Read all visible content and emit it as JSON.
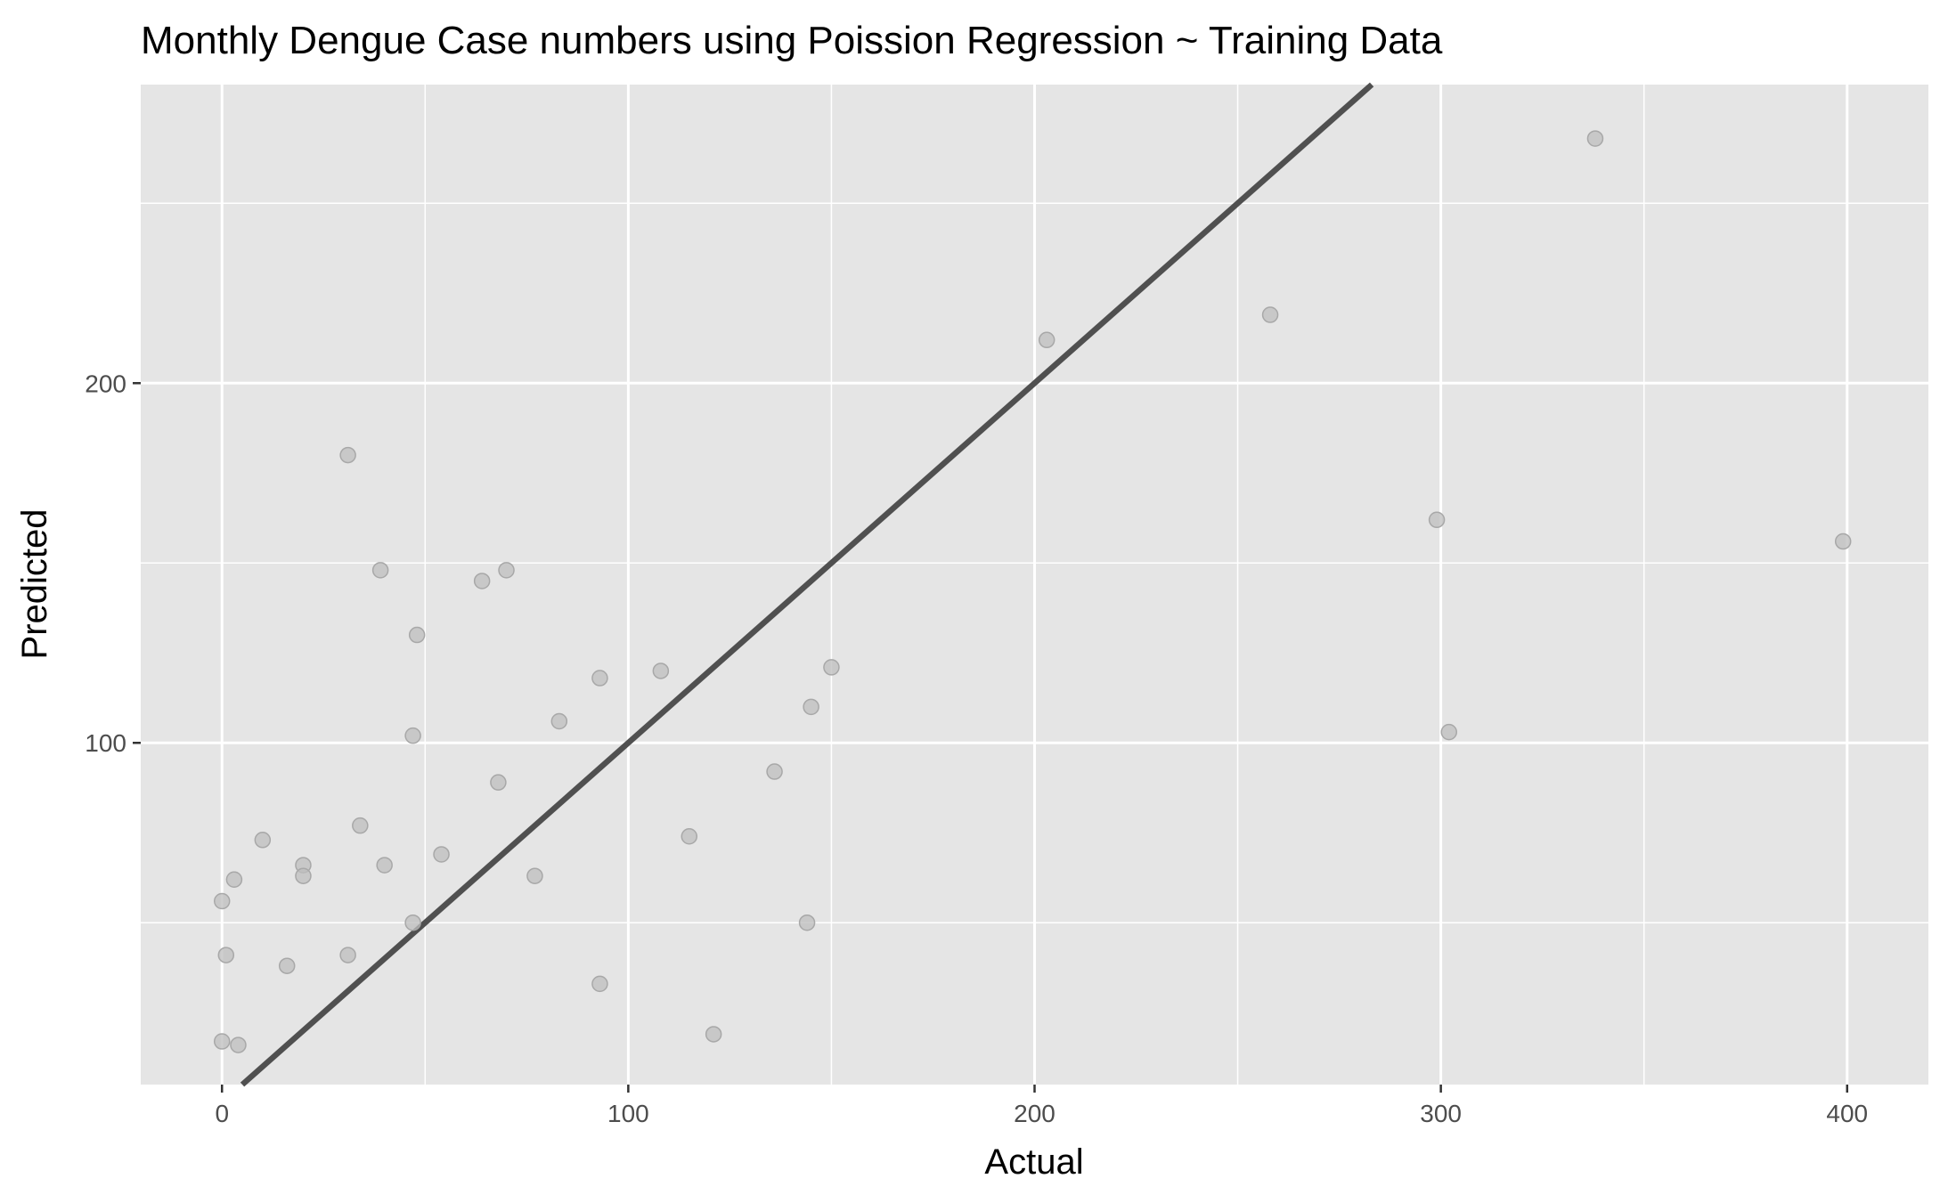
{
  "chart_data": {
    "type": "scatter",
    "title": "Monthly Dengue Case numbers using Poission Regression ~ Training Data",
    "xlabel": "Actual",
    "ylabel": "Predicted",
    "xlim": [
      -20,
      420
    ],
    "ylim": [
      5,
      283
    ],
    "x_ticks": [
      0,
      100,
      200,
      300,
      400
    ],
    "y_ticks": [
      100,
      200
    ],
    "x_minor_grid": [
      50,
      150,
      250,
      350
    ],
    "y_minor_grid": [
      50,
      150,
      250
    ],
    "grid": true,
    "legend": "none",
    "reference_line": {
      "slope": 1,
      "intercept": 0
    },
    "points": [
      {
        "x": 0,
        "y": 17
      },
      {
        "x": 4,
        "y": 16
      },
      {
        "x": 0,
        "y": 56
      },
      {
        "x": 1,
        "y": 41
      },
      {
        "x": 3,
        "y": 62
      },
      {
        "x": 10,
        "y": 73
      },
      {
        "x": 16,
        "y": 38
      },
      {
        "x": 20,
        "y": 66
      },
      {
        "x": 20,
        "y": 63
      },
      {
        "x": 31,
        "y": 180
      },
      {
        "x": 31,
        "y": 41
      },
      {
        "x": 34,
        "y": 77
      },
      {
        "x": 39,
        "y": 148
      },
      {
        "x": 40,
        "y": 66
      },
      {
        "x": 47,
        "y": 102
      },
      {
        "x": 47,
        "y": 50
      },
      {
        "x": 48,
        "y": 130
      },
      {
        "x": 54,
        "y": 69
      },
      {
        "x": 64,
        "y": 145
      },
      {
        "x": 68,
        "y": 89
      },
      {
        "x": 70,
        "y": 148
      },
      {
        "x": 77,
        "y": 63
      },
      {
        "x": 83,
        "y": 106
      },
      {
        "x": 93,
        "y": 118
      },
      {
        "x": 93,
        "y": 33
      },
      {
        "x": 108,
        "y": 120
      },
      {
        "x": 115,
        "y": 74
      },
      {
        "x": 121,
        "y": 19
      },
      {
        "x": 136,
        "y": 92
      },
      {
        "x": 144,
        "y": 50
      },
      {
        "x": 145,
        "y": 110
      },
      {
        "x": 150,
        "y": 121
      },
      {
        "x": 203,
        "y": 212
      },
      {
        "x": 258,
        "y": 219
      },
      {
        "x": 299,
        "y": 162
      },
      {
        "x": 302,
        "y": 103
      },
      {
        "x": 338,
        "y": 268
      },
      {
        "x": 399,
        "y": 156
      }
    ],
    "colors": {
      "panel_bg": "#e5e5e5",
      "grid": "#ffffff",
      "point_fill": "#bdbdbd",
      "point_stroke": "#a8a8a8",
      "line": "#505050",
      "tick_text": "#4d4d4d"
    }
  }
}
